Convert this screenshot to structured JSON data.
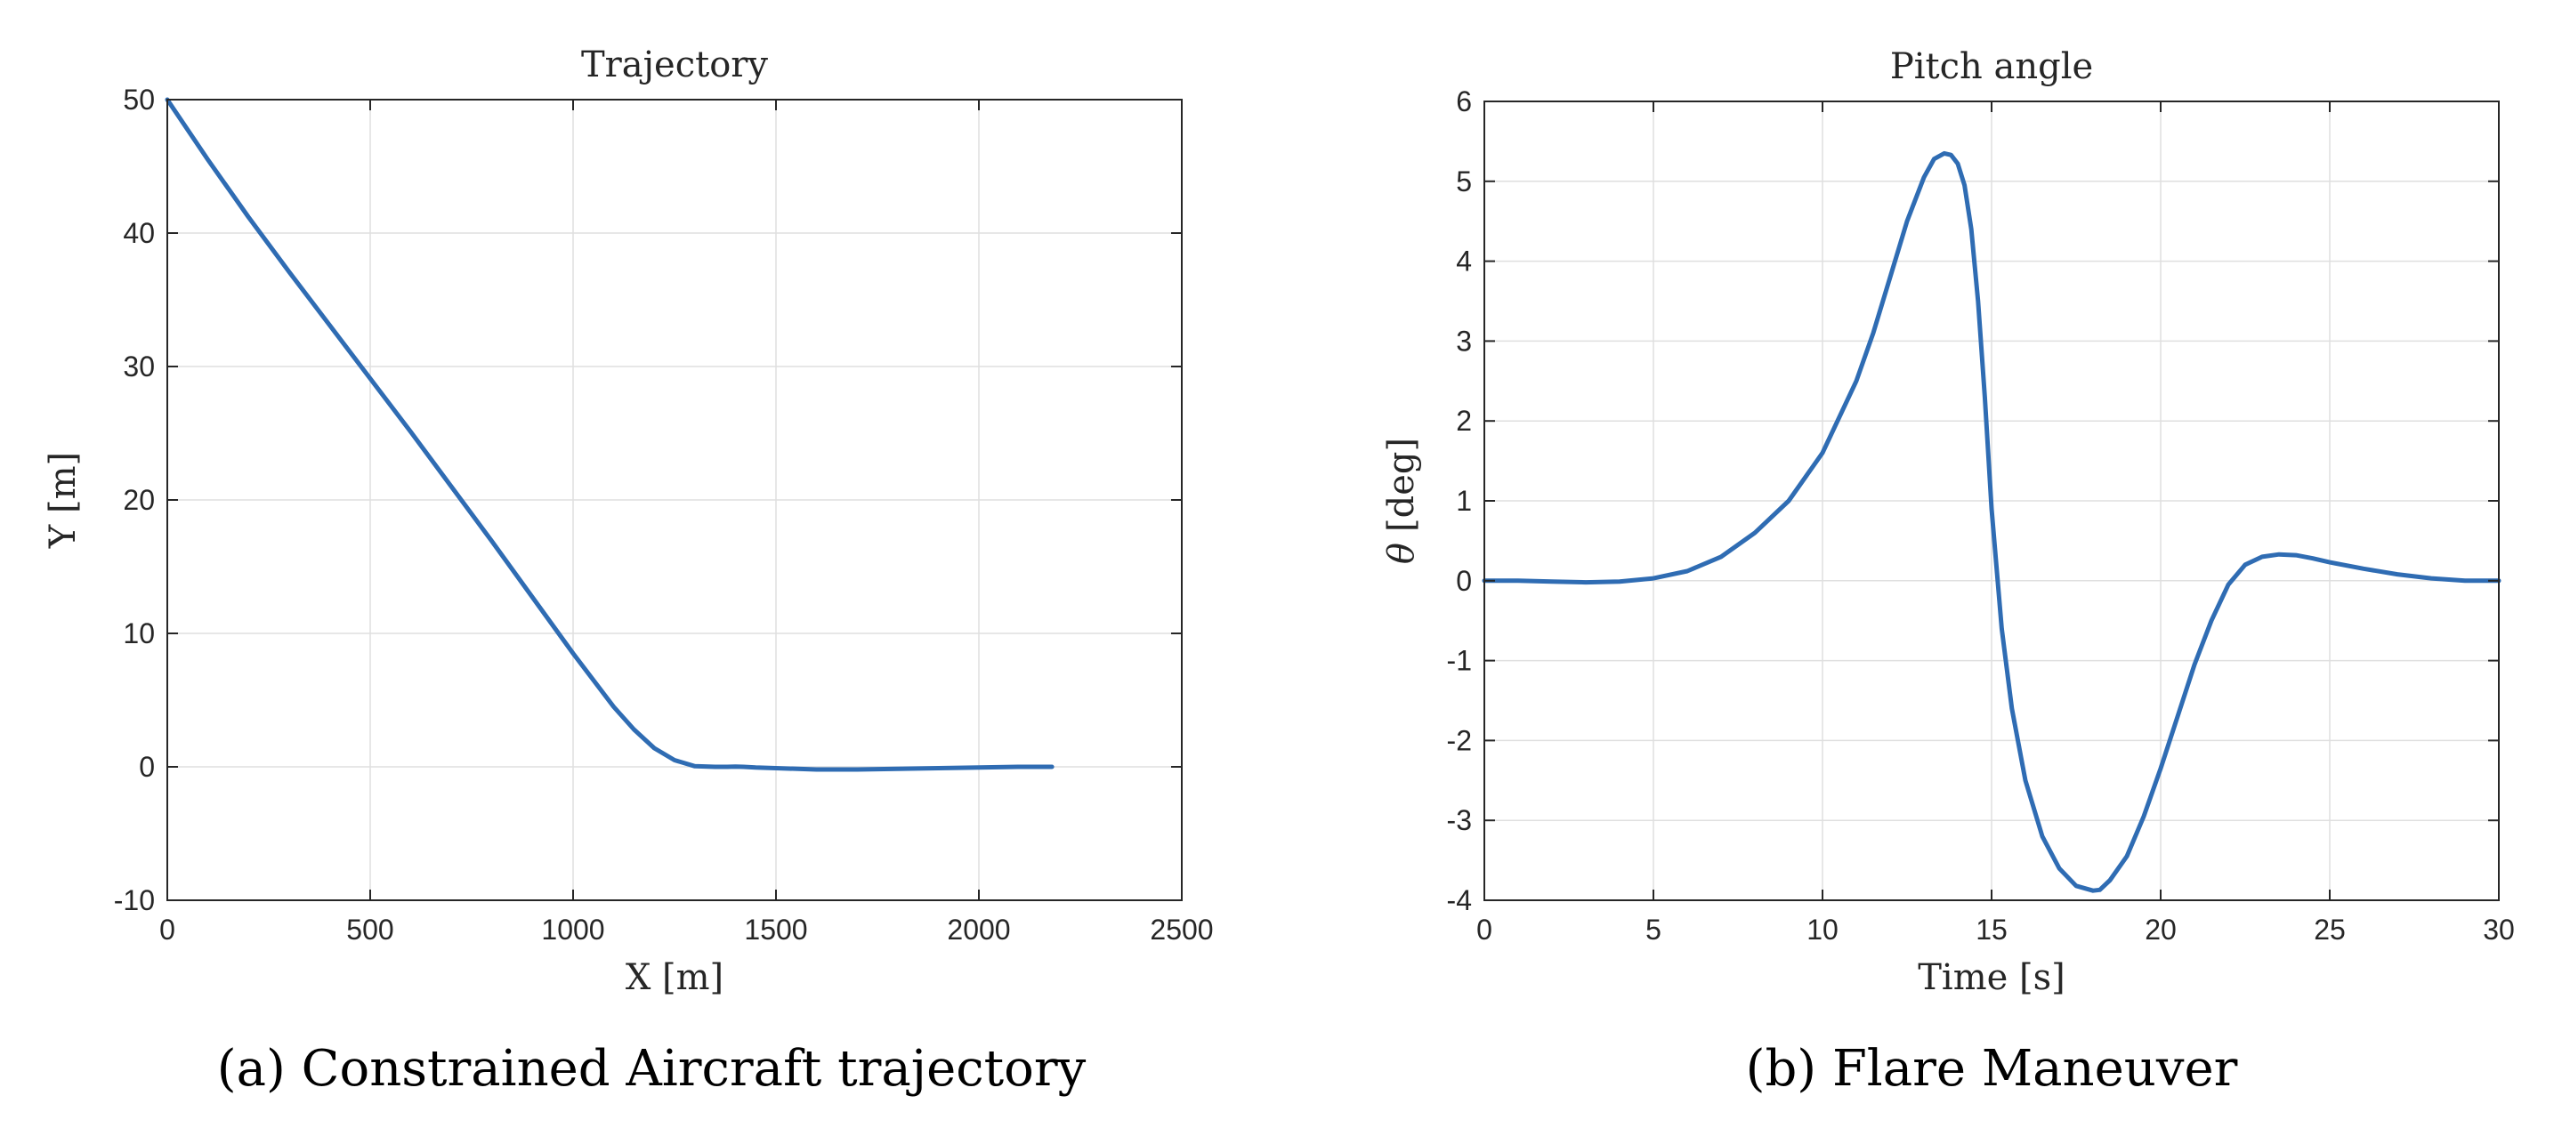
{
  "chart_data": [
    {
      "type": "line",
      "title": "Trajectory",
      "xlabel": "X [m]",
      "ylabel": "Y [m]",
      "caption": "(a) Constrained Aircraft trajectory",
      "xlim": [
        0,
        2500
      ],
      "ylim": [
        -10,
        50
      ],
      "xticks": [
        0,
        500,
        1000,
        1500,
        2000,
        2500
      ],
      "yticks": [
        -10,
        0,
        10,
        20,
        30,
        40,
        50
      ],
      "xticklabels": [
        "0",
        "500",
        "1000",
        "1500",
        "2000",
        "2500"
      ],
      "yticklabels": [
        "-10",
        "0",
        "10",
        "20",
        "30",
        "40",
        "50"
      ],
      "grid": true,
      "series_color": "#2f6cb3",
      "series": [
        {
          "x": [
            0,
            100,
            200,
            300,
            400,
            500,
            600,
            700,
            800,
            900,
            1000,
            1050,
            1100,
            1150,
            1200,
            1250,
            1300,
            1350,
            1380,
            1400,
            1420,
            1450,
            1500,
            1600,
            1700,
            1800,
            1900,
            2000,
            2100,
            2180
          ],
          "y": [
            50,
            45.5,
            41.2,
            37.1,
            33.1,
            29.1,
            25.1,
            21.0,
            16.9,
            12.7,
            8.5,
            6.5,
            4.5,
            2.8,
            1.4,
            0.5,
            0.05,
            0.0,
            0.0,
            0.02,
            0.0,
            -0.05,
            -0.1,
            -0.2,
            -0.2,
            -0.15,
            -0.1,
            -0.05,
            0.0,
            0.0
          ]
        }
      ]
    },
    {
      "type": "line",
      "title": "Pitch angle",
      "xlabel": "Time [s]",
      "ylabel_symbol": "θ",
      "ylabel_unit": "[deg]",
      "caption": "(b) Flare Maneuver",
      "xlim": [
        0,
        30
      ],
      "ylim": [
        -4,
        6
      ],
      "xticks": [
        0,
        5,
        10,
        15,
        20,
        25,
        30
      ],
      "yticks": [
        -4,
        -3,
        -2,
        -1,
        0,
        1,
        2,
        3,
        4,
        5,
        6
      ],
      "xticklabels": [
        "0",
        "5",
        "10",
        "15",
        "20",
        "25",
        "30"
      ],
      "yticklabels": [
        "-4",
        "-3",
        "-2",
        "-1",
        "0",
        "1",
        "2",
        "3",
        "4",
        "5",
        "6"
      ],
      "grid": true,
      "series_color": "#2f6cb3",
      "series": [
        {
          "x": [
            0,
            1,
            2,
            3,
            4,
            5,
            6,
            7,
            8,
            9,
            10,
            11,
            11.5,
            12,
            12.5,
            13,
            13.3,
            13.6,
            13.8,
            14.0,
            14.2,
            14.4,
            14.6,
            14.8,
            15.0,
            15.3,
            15.6,
            16,
            16.5,
            17,
            17.5,
            18,
            18.2,
            18.5,
            19,
            19.5,
            20,
            20.5,
            21,
            21.5,
            22,
            22.5,
            23,
            23.5,
            24,
            24.5,
            25,
            26,
            27,
            28,
            29,
            30
          ],
          "y": [
            0,
            0,
            -0.01,
            -0.02,
            -0.01,
            0.03,
            0.12,
            0.3,
            0.6,
            1.0,
            1.6,
            2.5,
            3.1,
            3.8,
            4.5,
            5.05,
            5.28,
            5.35,
            5.33,
            5.22,
            4.95,
            4.4,
            3.5,
            2.3,
            0.9,
            -0.6,
            -1.6,
            -2.5,
            -3.2,
            -3.6,
            -3.82,
            -3.88,
            -3.87,
            -3.75,
            -3.45,
            -2.95,
            -2.35,
            -1.7,
            -1.05,
            -0.5,
            -0.05,
            0.2,
            0.3,
            0.33,
            0.32,
            0.28,
            0.23,
            0.15,
            0.08,
            0.03,
            0.0,
            0.0
          ]
        }
      ]
    }
  ]
}
